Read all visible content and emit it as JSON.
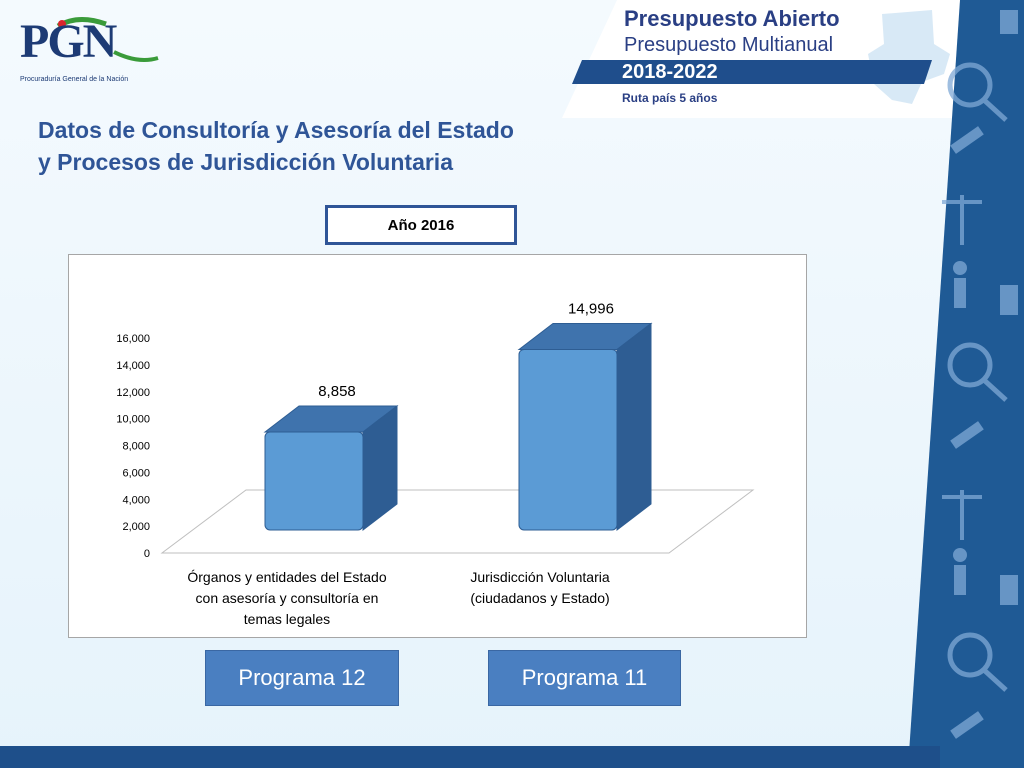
{
  "logo": {
    "text": "PGN",
    "subtitle": "Procuraduría General de la Nación"
  },
  "banner": {
    "title_line1": "Presupuesto Abierto",
    "title_line2": "Presupuesto Multianual",
    "years": "2018-2022",
    "route": "Ruta país 5 años"
  },
  "main": {
    "title_line1": "Datos de Consultoría y Asesoría del Estado",
    "title_line2": "y Procesos de Jurisdicción Voluntaria",
    "year_label": "Año 2016"
  },
  "buttons": {
    "program_12": "Programa 12",
    "program_11": "Programa 11"
  },
  "colors": {
    "bar_front": "#5b9bd5",
    "bar_top": "#3f73ad",
    "bar_side": "#2e5d93",
    "title": "#2f5597",
    "button": "#4a7fc1",
    "strip": "#1f5a95"
  },
  "chart_data": {
    "type": "bar",
    "style": "3d-column",
    "categories": [
      [
        "Órganos y entidades del Estado",
        "con asesoría y consultoría en",
        "temas legales"
      ],
      [
        "Jurisdicción Voluntaria",
        "(ciudadanos y Estado)"
      ]
    ],
    "values": [
      8858,
      14996
    ],
    "value_labels": [
      "8,858",
      "14,996"
    ],
    "ylim": [
      0,
      16000
    ],
    "yticks": [
      0,
      2000,
      4000,
      6000,
      8000,
      10000,
      12000,
      14000,
      16000
    ],
    "ytick_labels": [
      "0",
      "2,000",
      "4,000",
      "6,000",
      "8,000",
      "10,000",
      "12,000",
      "14,000",
      "16,000"
    ],
    "grid": false,
    "legend": "none"
  }
}
